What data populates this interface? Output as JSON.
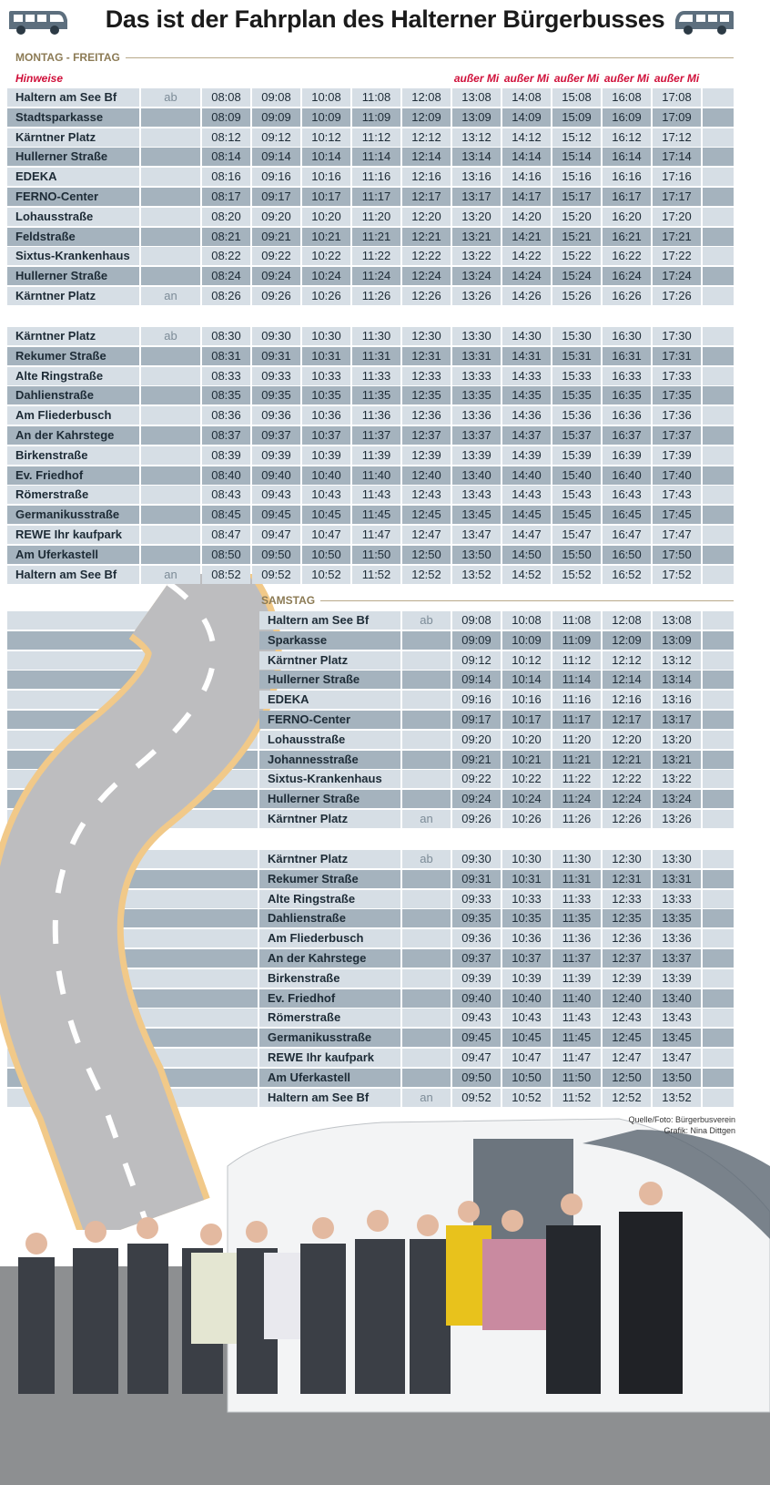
{
  "header": {
    "title": "Das ist der Fahrplan des Halterner Bürgerbusses"
  },
  "weekday": {
    "label": "MONTAG - FREITAG",
    "hint": "Hinweise",
    "notes": [
      "außer Mi",
      "außer Mi",
      "außer Mi",
      "außer Mi",
      "außer Mi"
    ],
    "blocks": [
      [
        {
          "stop": "Haltern am See Bf",
          "mark": "ab",
          "times": [
            "08:08",
            "09:08",
            "10:08",
            "11:08",
            "12:08",
            "13:08",
            "14:08",
            "15:08",
            "16:08",
            "17:08"
          ]
        },
        {
          "stop": "Stadtsparkasse",
          "times": [
            "08:09",
            "09:09",
            "10:09",
            "11:09",
            "12:09",
            "13:09",
            "14:09",
            "15:09",
            "16:09",
            "17:09"
          ]
        },
        {
          "stop": "Kärntner Platz",
          "times": [
            "08:12",
            "09:12",
            "10:12",
            "11:12",
            "12:12",
            "13:12",
            "14:12",
            "15:12",
            "16:12",
            "17:12"
          ]
        },
        {
          "stop": "Hullerner Straße",
          "times": [
            "08:14",
            "09:14",
            "10:14",
            "11:14",
            "12:14",
            "13:14",
            "14:14",
            "15:14",
            "16:14",
            "17:14"
          ]
        },
        {
          "stop": "EDEKA",
          "times": [
            "08:16",
            "09:16",
            "10:16",
            "11:16",
            "12:16",
            "13:16",
            "14:16",
            "15:16",
            "16:16",
            "17:16"
          ]
        },
        {
          "stop": "FERNO-Center",
          "times": [
            "08:17",
            "09:17",
            "10:17",
            "11:17",
            "12:17",
            "13:17",
            "14:17",
            "15:17",
            "16:17",
            "17:17"
          ]
        },
        {
          "stop": "Lohausstraße",
          "times": [
            "08:20",
            "09:20",
            "10:20",
            "11:20",
            "12:20",
            "13:20",
            "14:20",
            "15:20",
            "16:20",
            "17:20"
          ]
        },
        {
          "stop": "Feldstraße",
          "times": [
            "08:21",
            "09:21",
            "10:21",
            "11:21",
            "12:21",
            "13:21",
            "14:21",
            "15:21",
            "16:21",
            "17:21"
          ]
        },
        {
          "stop": "Sixtus-Krankenhaus",
          "times": [
            "08:22",
            "09:22",
            "10:22",
            "11:22",
            "12:22",
            "13:22",
            "14:22",
            "15:22",
            "16:22",
            "17:22"
          ]
        },
        {
          "stop": "Hullerner Straße",
          "times": [
            "08:24",
            "09:24",
            "10:24",
            "11:24",
            "12:24",
            "13:24",
            "14:24",
            "15:24",
            "16:24",
            "17:24"
          ]
        },
        {
          "stop": "Kärntner Platz",
          "mark": "an",
          "times": [
            "08:26",
            "09:26",
            "10:26",
            "11:26",
            "12:26",
            "13:26",
            "14:26",
            "15:26",
            "16:26",
            "17:26"
          ]
        }
      ],
      [
        {
          "stop": "Kärntner Platz",
          "mark": "ab",
          "times": [
            "08:30",
            "09:30",
            "10:30",
            "11:30",
            "12:30",
            "13:30",
            "14:30",
            "15:30",
            "16:30",
            "17:30"
          ]
        },
        {
          "stop": "Rekumer Straße",
          "times": [
            "08:31",
            "09:31",
            "10:31",
            "11:31",
            "12:31",
            "13:31",
            "14:31",
            "15:31",
            "16:31",
            "17:31"
          ]
        },
        {
          "stop": "Alte Ringstraße",
          "times": [
            "08:33",
            "09:33",
            "10:33",
            "11:33",
            "12:33",
            "13:33",
            "14:33",
            "15:33",
            "16:33",
            "17:33"
          ]
        },
        {
          "stop": "Dahlienstraße",
          "times": [
            "08:35",
            "09:35",
            "10:35",
            "11:35",
            "12:35",
            "13:35",
            "14:35",
            "15:35",
            "16:35",
            "17:35"
          ]
        },
        {
          "stop": "Am Fliederbusch",
          "times": [
            "08:36",
            "09:36",
            "10:36",
            "11:36",
            "12:36",
            "13:36",
            "14:36",
            "15:36",
            "16:36",
            "17:36"
          ]
        },
        {
          "stop": "An der Kahrstege",
          "times": [
            "08:37",
            "09:37",
            "10:37",
            "11:37",
            "12:37",
            "13:37",
            "14:37",
            "15:37",
            "16:37",
            "17:37"
          ]
        },
        {
          "stop": "Birkenstraße",
          "times": [
            "08:39",
            "09:39",
            "10:39",
            "11:39",
            "12:39",
            "13:39",
            "14:39",
            "15:39",
            "16:39",
            "17:39"
          ]
        },
        {
          "stop": "Ev. Friedhof",
          "times": [
            "08:40",
            "09:40",
            "10:40",
            "11:40",
            "12:40",
            "13:40",
            "14:40",
            "15:40",
            "16:40",
            "17:40"
          ]
        },
        {
          "stop": "Römerstraße",
          "times": [
            "08:43",
            "09:43",
            "10:43",
            "11:43",
            "12:43",
            "13:43",
            "14:43",
            "15:43",
            "16:43",
            "17:43"
          ]
        },
        {
          "stop": "Germanikusstraße",
          "times": [
            "08:45",
            "09:45",
            "10:45",
            "11:45",
            "12:45",
            "13:45",
            "14:45",
            "15:45",
            "16:45",
            "17:45"
          ]
        },
        {
          "stop": "REWE Ihr kaufpark",
          "times": [
            "08:47",
            "09:47",
            "10:47",
            "11:47",
            "12:47",
            "13:47",
            "14:47",
            "15:47",
            "16:47",
            "17:47"
          ]
        },
        {
          "stop": "Am Uferkastell",
          "times": [
            "08:50",
            "09:50",
            "10:50",
            "11:50",
            "12:50",
            "13:50",
            "14:50",
            "15:50",
            "16:50",
            "17:50"
          ]
        },
        {
          "stop": "Haltern am See Bf",
          "mark": "an",
          "times": [
            "08:52",
            "09:52",
            "10:52",
            "11:52",
            "12:52",
            "13:52",
            "14:52",
            "15:52",
            "16:52",
            "17:52"
          ]
        }
      ]
    ]
  },
  "saturday": {
    "label": "SAMSTAG",
    "blocks": [
      [
        {
          "stop": "Haltern am See Bf",
          "mark": "ab",
          "times": [
            "09:08",
            "10:08",
            "11:08",
            "12:08",
            "13:08"
          ]
        },
        {
          "stop": "Sparkasse",
          "times": [
            "09:09",
            "10:09",
            "11:09",
            "12:09",
            "13:09"
          ]
        },
        {
          "stop": "Kärntner Platz",
          "times": [
            "09:12",
            "10:12",
            "11:12",
            "12:12",
            "13:12"
          ]
        },
        {
          "stop": "Hullerner Straße",
          "times": [
            "09:14",
            "10:14",
            "11:14",
            "12:14",
            "13:14"
          ]
        },
        {
          "stop": "EDEKA",
          "times": [
            "09:16",
            "10:16",
            "11:16",
            "12:16",
            "13:16"
          ]
        },
        {
          "stop": "FERNO-Center",
          "times": [
            "09:17",
            "10:17",
            "11:17",
            "12:17",
            "13:17"
          ]
        },
        {
          "stop": "Lohausstraße",
          "times": [
            "09:20",
            "10:20",
            "11:20",
            "12:20",
            "13:20"
          ]
        },
        {
          "stop": "Johannesstraße",
          "times": [
            "09:21",
            "10:21",
            "11:21",
            "12:21",
            "13:21"
          ]
        },
        {
          "stop": "Sixtus-Krankenhaus",
          "times": [
            "09:22",
            "10:22",
            "11:22",
            "12:22",
            "13:22"
          ]
        },
        {
          "stop": "Hullerner Straße",
          "times": [
            "09:24",
            "10:24",
            "11:24",
            "12:24",
            "13:24"
          ]
        },
        {
          "stop": "Kärntner Platz",
          "mark": "an",
          "times": [
            "09:26",
            "10:26",
            "11:26",
            "12:26",
            "13:26"
          ]
        }
      ],
      [
        {
          "stop": "Kärntner Platz",
          "mark": "ab",
          "times": [
            "09:30",
            "10:30",
            "11:30",
            "12:30",
            "13:30"
          ]
        },
        {
          "stop": "Rekumer Straße",
          "times": [
            "09:31",
            "10:31",
            "11:31",
            "12:31",
            "13:31"
          ]
        },
        {
          "stop": "Alte Ringstraße",
          "times": [
            "09:33",
            "10:33",
            "11:33",
            "12:33",
            "13:33"
          ]
        },
        {
          "stop": "Dahlienstraße",
          "times": [
            "09:35",
            "10:35",
            "11:35",
            "12:35",
            "13:35"
          ]
        },
        {
          "stop": "Am Fliederbusch",
          "times": [
            "09:36",
            "10:36",
            "11:36",
            "12:36",
            "13:36"
          ]
        },
        {
          "stop": "An der Kahrstege",
          "times": [
            "09:37",
            "10:37",
            "11:37",
            "12:37",
            "13:37"
          ]
        },
        {
          "stop": "Birkenstraße",
          "times": [
            "09:39",
            "10:39",
            "11:39",
            "12:39",
            "13:39"
          ]
        },
        {
          "stop": "Ev. Friedhof",
          "times": [
            "09:40",
            "10:40",
            "11:40",
            "12:40",
            "13:40"
          ]
        },
        {
          "stop": "Römerstraße",
          "times": [
            "09:43",
            "10:43",
            "11:43",
            "12:43",
            "13:43"
          ]
        },
        {
          "stop": "Germanikusstraße",
          "times": [
            "09:45",
            "10:45",
            "11:45",
            "12:45",
            "13:45"
          ]
        },
        {
          "stop": "REWE Ihr kaufpark",
          "times": [
            "09:47",
            "10:47",
            "11:47",
            "12:47",
            "13:47"
          ]
        },
        {
          "stop": "Am Uferkastell",
          "times": [
            "09:50",
            "10:50",
            "11:50",
            "12:50",
            "13:50"
          ]
        },
        {
          "stop": "Haltern am See Bf",
          "mark": "an",
          "times": [
            "09:52",
            "10:52",
            "11:52",
            "12:52",
            "13:52"
          ]
        }
      ]
    ]
  },
  "credits": [
    "Quelle/Foto: Bürgerbusverein",
    "Grafik: Nina Dittgen"
  ]
}
